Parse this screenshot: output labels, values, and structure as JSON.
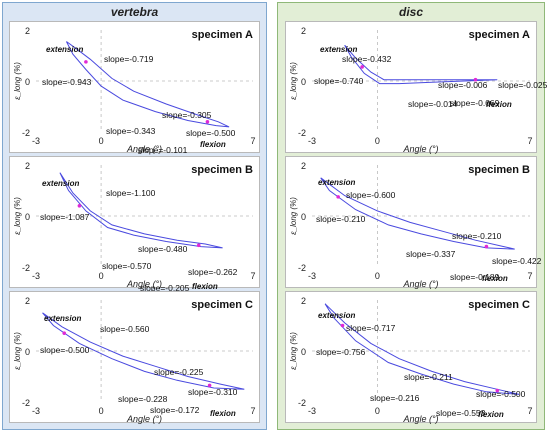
{
  "columns": [
    {
      "title": "vertebra",
      "background": "#dbe6f4",
      "border": "#7fa7cf",
      "panels": [
        {
          "specimen": "specimen A",
          "chart_data": {
            "type": "line",
            "xlabel": "Angle (°)",
            "ylabel": "ε_long (%)",
            "xlim": [
              -3,
              7
            ],
            "ylim": [
              -2,
              2
            ],
            "xticks": [
              -3,
              0,
              7
            ],
            "yticks": [
              2,
              0,
              -2
            ],
            "grid": "dashed zero lines",
            "annotations": [
              "extension",
              "flexion"
            ],
            "slopes": [
              "slope=-0.719",
              "slope=-0.943",
              "slope=-0.305",
              "slope=-0.343",
              "slope=-0.500",
              "slope=-0.101"
            ],
            "series": [
              {
                "values": [
                  [
                    -1.6,
                    1.55
                  ],
                  [
                    -1.2,
                    1.3
                  ],
                  [
                    -0.5,
                    0.85
                  ],
                  [
                    0.5,
                    0.1
                  ],
                  [
                    1.5,
                    -0.4
                  ],
                  [
                    3.0,
                    -0.9
                  ],
                  [
                    4.5,
                    -1.35
                  ],
                  [
                    5.4,
                    -1.6
                  ],
                  [
                    5.9,
                    -1.8
                  ],
                  [
                    5.3,
                    -1.75
                  ],
                  [
                    4.0,
                    -1.55
                  ],
                  [
                    2.5,
                    -1.2
                  ],
                  [
                    1.0,
                    -0.75
                  ],
                  [
                    0,
                    -0.2
                  ],
                  [
                    -0.7,
                    0.45
                  ],
                  [
                    -1.3,
                    1.05
                  ],
                  [
                    -1.6,
                    1.55
                  ]
                ]
              }
            ],
            "markers": [
              [
                -0.7,
                0.75
              ],
              [
                4.9,
                -1.6
              ]
            ]
          }
        },
        {
          "specimen": "specimen B",
          "chart_data": {
            "type": "line",
            "xlabel": "Angle (°)",
            "ylabel": "ε_long (%)",
            "xlim": [
              -3,
              7
            ],
            "ylim": [
              -2,
              2
            ],
            "xticks": [
              -3,
              0,
              7
            ],
            "yticks": [
              2,
              0,
              -2
            ],
            "grid": "dashed zero lines",
            "annotations": [
              "extension",
              "flexion"
            ],
            "slopes": [
              "slope=-1.100",
              "slope=-1.087",
              "slope=-0.480",
              "slope=-0.570",
              "slope=-0.262",
              "slope=-0.205"
            ],
            "series": [
              {
                "values": [
                  [
                    -1.9,
                    1.7
                  ],
                  [
                    -1.3,
                    0.9
                  ],
                  [
                    -0.5,
                    0.2
                  ],
                  [
                    0.5,
                    -0.35
                  ],
                  [
                    2.0,
                    -0.7
                  ],
                  [
                    3.5,
                    -0.95
                  ],
                  [
                    4.8,
                    -1.1
                  ],
                  [
                    5.6,
                    -1.25
                  ],
                  [
                    4.6,
                    -1.2
                  ],
                  [
                    3.0,
                    -1.0
                  ],
                  [
                    1.5,
                    -0.75
                  ],
                  [
                    0.3,
                    -0.45
                  ],
                  [
                    -0.7,
                    0.2
                  ],
                  [
                    -1.5,
                    1.0
                  ],
                  [
                    -1.9,
                    1.7
                  ]
                ]
              }
            ],
            "markers": [
              [
                -1.0,
                0.4
              ],
              [
                4.5,
                -1.15
              ]
            ]
          }
        },
        {
          "specimen": "specimen C",
          "chart_data": {
            "type": "line",
            "xlabel": "Angle (°)",
            "ylabel": "ε_long (%)",
            "xlim": [
              -3,
              7
            ],
            "ylim": [
              -2,
              2
            ],
            "xticks": [
              -3,
              0,
              7
            ],
            "yticks": [
              2,
              0,
              -2
            ],
            "grid": "dashed zero lines",
            "annotations": [
              "extension",
              "flexion"
            ],
            "slopes": [
              "slope=-0.560",
              "slope=-0.500",
              "slope=-0.225",
              "slope=-0.228",
              "slope=-0.310",
              "slope=-0.172"
            ],
            "series": [
              {
                "values": [
                  [
                    -2.7,
                    1.5
                  ],
                  [
                    -1.8,
                    0.95
                  ],
                  [
                    -0.5,
                    0.35
                  ],
                  [
                    1.0,
                    -0.2
                  ],
                  [
                    2.5,
                    -0.6
                  ],
                  [
                    4.0,
                    -1.0
                  ],
                  [
                    5.5,
                    -1.3
                  ],
                  [
                    6.6,
                    -1.5
                  ],
                  [
                    5.2,
                    -1.45
                  ],
                  [
                    3.5,
                    -1.15
                  ],
                  [
                    2.0,
                    -0.8
                  ],
                  [
                    0.5,
                    -0.3
                  ],
                  [
                    -1.0,
                    0.3
                  ],
                  [
                    -2.2,
                    1.0
                  ],
                  [
                    -2.7,
                    1.5
                  ]
                ]
              }
            ],
            "markers": [
              [
                -1.7,
                0.7
              ],
              [
                5.0,
                -1.35
              ]
            ]
          }
        }
      ]
    },
    {
      "title": "disc",
      "background": "#e2eed6",
      "border": "#8fb878",
      "panels": [
        {
          "specimen": "specimen A",
          "chart_data": {
            "type": "line",
            "xlabel": "Angle (°)",
            "ylabel": "ε_long (%)",
            "xlim": [
              -3,
              7
            ],
            "ylim": [
              -2,
              2
            ],
            "xticks": [
              -3,
              0,
              7
            ],
            "yticks": [
              2,
              0,
              -2
            ],
            "grid": "dashed zero lines",
            "annotations": [
              "extension",
              "flexion"
            ],
            "slopes": [
              "slope=-0.432",
              "slope=-0.740",
              "slope=-0.006",
              "slope=-0.025",
              "slope=-0.014",
              "slope=-0.069"
            ],
            "series": [
              {
                "values": [
                  [
                    -1.5,
                    1.4
                  ],
                  [
                    -1.0,
                    0.9
                  ],
                  [
                    -0.3,
                    0.35
                  ],
                  [
                    0.3,
                    0.05
                  ],
                  [
                    1.5,
                    0.05
                  ],
                  [
                    3.0,
                    0.05
                  ],
                  [
                    4.5,
                    0.05
                  ],
                  [
                    5.5,
                    0.05
                  ],
                  [
                    4.0,
                    0.0
                  ],
                  [
                    2.5,
                    -0.05
                  ],
                  [
                    1.0,
                    -0.1
                  ],
                  [
                    0.1,
                    -0.1
                  ],
                  [
                    -0.6,
                    0.3
                  ],
                  [
                    -1.2,
                    0.95
                  ],
                  [
                    -1.5,
                    1.4
                  ]
                ]
              }
            ],
            "markers": [
              [
                -0.7,
                0.55
              ],
              [
                4.5,
                0.05
              ]
            ]
          }
        },
        {
          "specimen": "specimen B",
          "chart_data": {
            "type": "line",
            "xlabel": "Angle (°)",
            "ylabel": "ε_long (%)",
            "xlim": [
              -3,
              7
            ],
            "ylim": [
              -2,
              2
            ],
            "xticks": [
              -3,
              0,
              7
            ],
            "yticks": [
              2,
              0,
              -2
            ],
            "grid": "dashed zero lines",
            "annotations": [
              "extension",
              "flexion"
            ],
            "slopes": [
              "slope=-0.600",
              "slope=-0.210",
              "slope=-0.210",
              "slope=-0.337",
              "slope=-0.422",
              "slope=-0.189"
            ],
            "series": [
              {
                "values": [
                  [
                    -2.6,
                    1.5
                  ],
                  [
                    -1.5,
                    0.8
                  ],
                  [
                    0.0,
                    0.2
                  ],
                  [
                    1.5,
                    -0.25
                  ],
                  [
                    3.0,
                    -0.6
                  ],
                  [
                    4.5,
                    -0.95
                  ],
                  [
                    5.8,
                    -1.2
                  ],
                  [
                    6.3,
                    -1.3
                  ],
                  [
                    5.0,
                    -1.25
                  ],
                  [
                    3.5,
                    -1.0
                  ],
                  [
                    2.0,
                    -0.7
                  ],
                  [
                    0.5,
                    -0.35
                  ],
                  [
                    -1.0,
                    0.25
                  ],
                  [
                    -2.2,
                    1.0
                  ],
                  [
                    -2.6,
                    1.5
                  ]
                ]
              }
            ],
            "markers": [
              [
                -1.8,
                0.75
              ],
              [
                5.0,
                -1.2
              ]
            ]
          }
        },
        {
          "specimen": "specimen C",
          "chart_data": {
            "type": "line",
            "xlabel": "Angle (°)",
            "ylabel": "ε_long (%)",
            "xlim": [
              -3,
              7
            ],
            "ylim": [
              -2,
              2
            ],
            "xticks": [
              -3,
              0,
              7
            ],
            "yticks": [
              2,
              0,
              -2
            ],
            "grid": "dashed zero lines",
            "annotations": [
              "extension",
              "flexion"
            ],
            "slopes": [
              "slope=-0.717",
              "slope=-0.756",
              "slope=-0.211",
              "slope=-0.216",
              "slope=-0.500",
              "slope=-0.553"
            ],
            "series": [
              {
                "values": [
                  [
                    -2.4,
                    1.85
                  ],
                  [
                    -1.5,
                    1.1
                  ],
                  [
                    -0.3,
                    0.3
                  ],
                  [
                    1.0,
                    -0.3
                  ],
                  [
                    2.5,
                    -0.8
                  ],
                  [
                    4.0,
                    -1.2
                  ],
                  [
                    5.5,
                    -1.5
                  ],
                  [
                    6.5,
                    -1.7
                  ],
                  [
                    5.0,
                    -1.6
                  ],
                  [
                    3.5,
                    -1.3
                  ],
                  [
                    2.0,
                    -0.9
                  ],
                  [
                    0.5,
                    -0.45
                  ],
                  [
                    -1.0,
                    0.4
                  ],
                  [
                    -2.0,
                    1.3
                  ],
                  [
                    -2.4,
                    1.85
                  ]
                ]
              }
            ],
            "markers": [
              [
                -1.6,
                1.0
              ],
              [
                5.5,
                -1.55
              ]
            ]
          }
        }
      ]
    }
  ]
}
